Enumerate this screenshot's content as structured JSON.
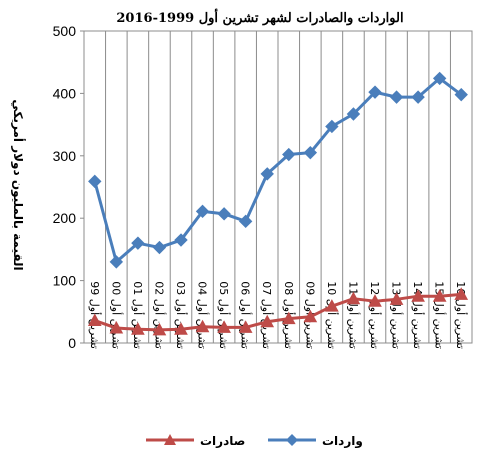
{
  "chart_data": {
    "type": "line",
    "title": "الواردات والصادرات لشهر تشرين أول 1999-2016",
    "ylabel": "القيمة بالمليون دولار أمريكي",
    "xlabel": "",
    "ylim": [
      0,
      500
    ],
    "yticks": [
      0,
      100,
      200,
      300,
      400,
      500
    ],
    "grid": "vertical",
    "legend_position": "bottom",
    "categories": [
      "تشرين أول 99",
      "تشرين أول 00",
      "تشرين أول 01",
      "تشرين أول 02",
      "تشرين أول 03",
      "تشرين أول 04",
      "تشرين أول 05",
      "تشرين أول 06",
      "تشرين أول 07",
      "تشرين أول 08",
      "تشرين أول 09",
      "تشرين أول 10",
      "تشرين أول 11",
      "تشرين أول 12",
      "تشرين أول 13",
      "تشرين أول 14",
      "تشرين أول 15",
      "تشرين أول 16"
    ],
    "series": [
      {
        "name": "واردات",
        "color": "#4a7ebb",
        "marker": "diamond",
        "values": [
          259,
          130,
          160,
          153,
          165,
          211,
          207,
          195,
          271,
          302,
          305,
          347,
          367,
          402,
          394,
          394,
          424,
          398
        ]
      },
      {
        "name": "صادرات",
        "color": "#be4b48",
        "marker": "triangle",
        "values": [
          36,
          24,
          22,
          21,
          22,
          26,
          25,
          25,
          34,
          39,
          42,
          59,
          71,
          67,
          70,
          75,
          75,
          78
        ]
      }
    ]
  }
}
